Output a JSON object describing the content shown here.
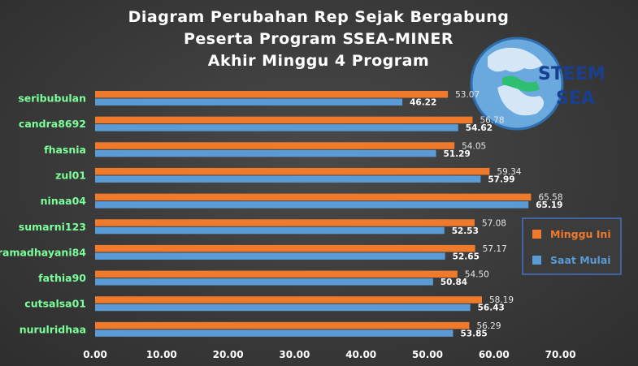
{
  "chart_data": {
    "type": "bar",
    "orientation": "horizontal",
    "title_lines": [
      "Diagram Perubahan Rep Sejak Bergabung",
      "Peserta Program SSEA-MINER",
      "Akhir Minggu 4 Program"
    ],
    "categories": [
      "seribubulan",
      "candra8692",
      "fhasnia",
      "zul01",
      "ninaa04",
      "sumarni123",
      "ramadhayani84",
      "fathia90",
      "cutsalsa01",
      "nurulridhaa"
    ],
    "series": [
      {
        "name": "Minggu Ini",
        "color": "#f07a2c",
        "values": [
          53.07,
          56.78,
          54.05,
          59.34,
          65.58,
          57.08,
          57.17,
          54.5,
          58.19,
          56.29
        ]
      },
      {
        "name": "Saat Mulai",
        "color": "#5b9bd5",
        "values": [
          46.22,
          54.62,
          51.29,
          57.99,
          65.19,
          52.53,
          52.65,
          50.84,
          56.43,
          53.85
        ]
      }
    ],
    "xlim": [
      0,
      70
    ],
    "x_ticks": [
      "0.00",
      "10.00",
      "20.00",
      "30.00",
      "40.00",
      "50.00",
      "60.00",
      "70.00"
    ],
    "legend_position": "right",
    "grid": false
  },
  "logo": {
    "line1": "STEEM",
    "line2": "SEA"
  }
}
